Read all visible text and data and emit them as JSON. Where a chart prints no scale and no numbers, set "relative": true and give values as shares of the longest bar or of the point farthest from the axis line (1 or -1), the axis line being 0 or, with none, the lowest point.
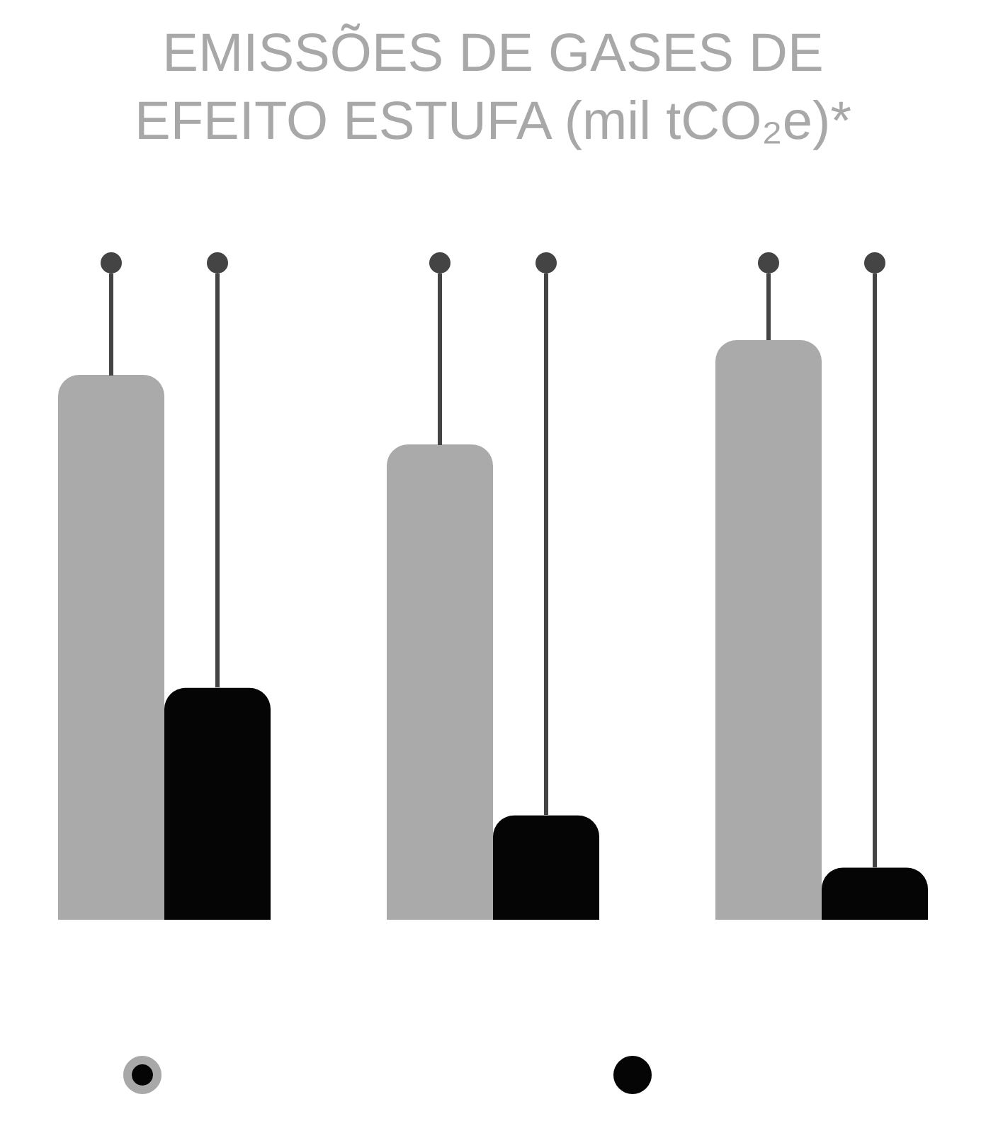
{
  "chart_data": {
    "type": "bar",
    "title": "EMISSÕES DE GASES DE EFEITO ESTUFA (mil tCO₂e)*",
    "categories": [
      null,
      null,
      null
    ],
    "relative": true,
    "series": [
      {
        "color": "#aaaaaa",
        "values": [
          0.94,
          0.82,
          1
        ]
      },
      {
        "color": "#050505",
        "values": [
          0.4,
          0.18,
          0.09
        ]
      }
    ]
  }
}
